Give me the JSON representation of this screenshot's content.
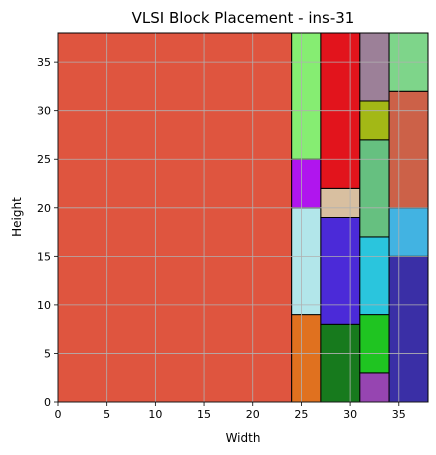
{
  "chart_data": {
    "type": "block-placement",
    "title": "VLSI Block Placement - ins-31",
    "xlabel": "Width",
    "ylabel": "Height",
    "xlim": [
      0,
      38
    ],
    "ylim": [
      0,
      38
    ],
    "xticks": [
      0,
      5,
      10,
      15,
      20,
      25,
      30,
      35
    ],
    "yticks": [
      0,
      5,
      10,
      15,
      20,
      25,
      30,
      35
    ],
    "grid": true,
    "blocks": [
      {
        "x": 0,
        "y": 0,
        "w": 24,
        "h": 38,
        "color": "#df553f"
      },
      {
        "x": 24,
        "y": 0,
        "w": 3,
        "h": 9,
        "color": "#e0711f"
      },
      {
        "x": 24,
        "y": 9,
        "w": 3,
        "h": 11,
        "color": "#b2e6ea"
      },
      {
        "x": 24,
        "y": 20,
        "w": 3,
        "h": 5,
        "color": "#b015ee"
      },
      {
        "x": 24,
        "y": 25,
        "w": 3,
        "h": 13,
        "color": "#86ed72"
      },
      {
        "x": 27,
        "y": 0,
        "w": 4,
        "h": 8,
        "color": "#177a1d"
      },
      {
        "x": 27,
        "y": 8,
        "w": 4,
        "h": 11,
        "color": "#4b2ad8"
      },
      {
        "x": 27,
        "y": 19,
        "w": 4,
        "h": 3,
        "color": "#d8bfa0"
      },
      {
        "x": 27,
        "y": 22,
        "w": 4,
        "h": 16,
        "color": "#e2141c"
      },
      {
        "x": 31,
        "y": 0,
        "w": 3,
        "h": 3,
        "color": "#9645b1"
      },
      {
        "x": 31,
        "y": 3,
        "w": 3,
        "h": 6,
        "color": "#1fc421"
      },
      {
        "x": 31,
        "y": 9,
        "w": 3,
        "h": 8,
        "color": "#2ac5dd"
      },
      {
        "x": 31,
        "y": 17,
        "w": 3,
        "h": 10,
        "color": "#66c080"
      },
      {
        "x": 31,
        "y": 27,
        "w": 3,
        "h": 4,
        "color": "#a3b816"
      },
      {
        "x": 31,
        "y": 31,
        "w": 3,
        "h": 7,
        "color": "#9c8098"
      },
      {
        "x": 34,
        "y": 0,
        "w": 4,
        "h": 15,
        "color": "#3a2fa6"
      },
      {
        "x": 34,
        "y": 15,
        "w": 4,
        "h": 5,
        "color": "#42b3e2"
      },
      {
        "x": 34,
        "y": 20,
        "w": 4,
        "h": 12,
        "color": "#cc6148"
      },
      {
        "x": 34,
        "y": 32,
        "w": 4,
        "h": 6,
        "color": "#7ed58a"
      }
    ]
  }
}
